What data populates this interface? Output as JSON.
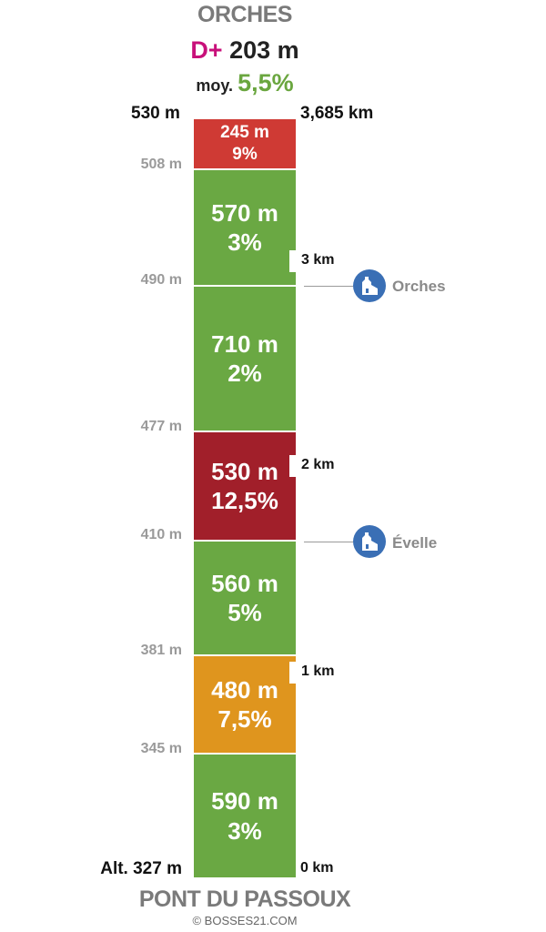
{
  "header": {
    "title": "ORCHES",
    "dplus_label": "D+",
    "dplus_value": "203 m",
    "avg_label": "moy.",
    "avg_value": "5,5%"
  },
  "top_altitude": "530 m",
  "top_distance": "3,685 km",
  "segments": [
    {
      "length": "245 m",
      "grade": "9%",
      "color": "#cf3a34"
    },
    {
      "length": "570 m",
      "grade": "3%",
      "color": "#6aa843"
    },
    {
      "length": "710 m",
      "grade": "2%",
      "color": "#6aa843"
    },
    {
      "length": "530 m",
      "grade": "12,5%",
      "color": "#a11f2a"
    },
    {
      "length": "560 m",
      "grade": "5%",
      "color": "#6aa843"
    },
    {
      "length": "480 m",
      "grade": "7,5%",
      "color": "#df951e"
    },
    {
      "length": "590 m",
      "grade": "3%",
      "color": "#6aa843"
    }
  ],
  "altitudes": [
    "508 m",
    "490 m",
    "477 m",
    "410 m",
    "381 m",
    "345 m"
  ],
  "bottom_altitude": "Alt. 327 m",
  "km_markers": [
    "3 km",
    "2 km",
    "1 km"
  ],
  "zero_km": "0 km",
  "places": [
    {
      "name": "Orches",
      "icon": "church-icon",
      "color": "#3a6fb5"
    },
    {
      "name": "Évelle",
      "icon": "church-icon",
      "color": "#3a6fb5"
    }
  ],
  "footer": {
    "start_name": "PONT DU PASSOUX",
    "copyright": "© BOSSES21.COM"
  }
}
